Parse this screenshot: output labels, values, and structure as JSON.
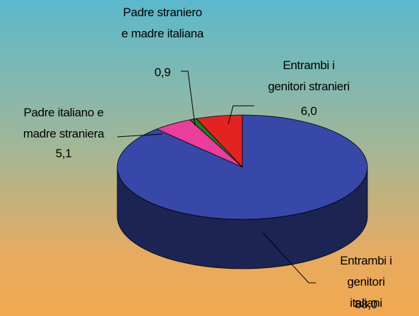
{
  "chart_data": {
    "type": "pie",
    "categories": [
      "Entrambi i\ngenitori stranieri",
      "Padre straniero\ne madre italiana",
      "Padre italiano e\nmadre straniera",
      "Entrambi i\ngenitori italiani"
    ],
    "values": [
      6.0,
      0.9,
      5.1,
      88.0
    ],
    "value_labels": [
      "6,0",
      "0,9",
      "5,1",
      "88,0"
    ],
    "colors": [
      "#e32222",
      "#1f7a2a",
      "#ea3d9c",
      "#3848a8"
    ]
  }
}
